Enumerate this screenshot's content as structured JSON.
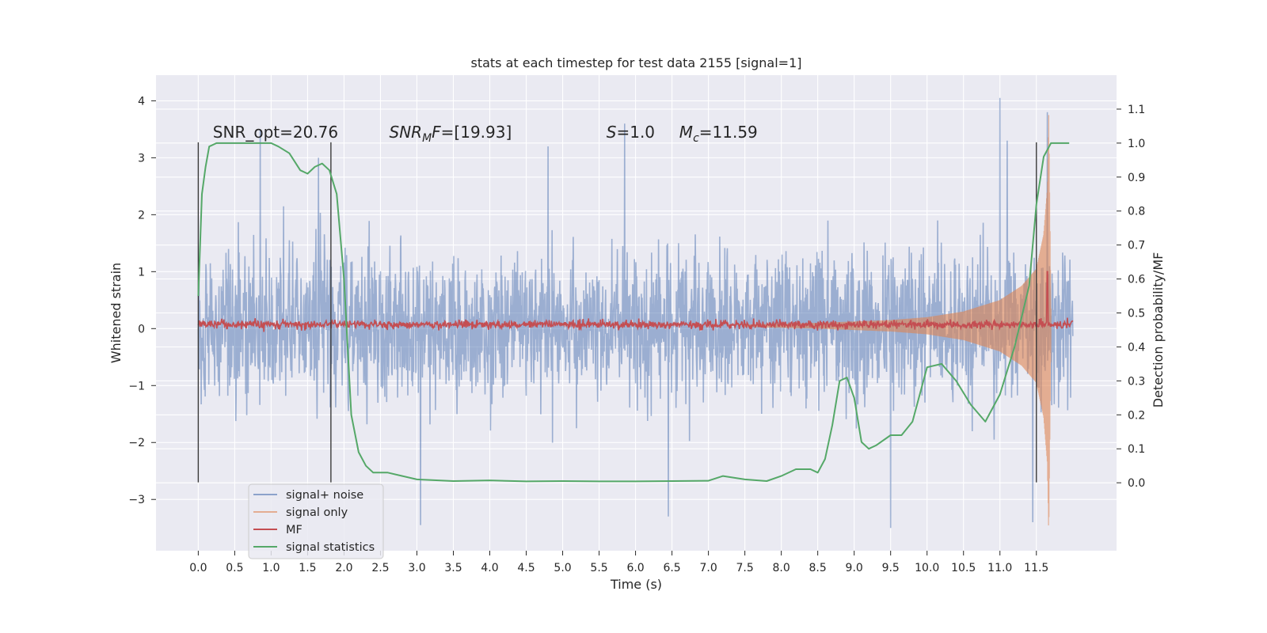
{
  "chart_data": {
    "type": "line",
    "title": "stats at each timestep for test data 2155 [signal=1]",
    "xlabel": "Time (s)",
    "ylabel": "Whitened strain",
    "ylabel_right": "Detection probability/MF",
    "xlim": [
      -0.58,
      12.6
    ],
    "ylim": [
      -3.9,
      4.45
    ],
    "ylim_right": [
      -0.2,
      1.2
    ],
    "x_ticks": [
      "0.0",
      "0.5",
      "1.0",
      "1.5",
      "2.0",
      "2.5",
      "3.0",
      "3.5",
      "4.0",
      "4.5",
      "5.0",
      "5.5",
      "6.0",
      "6.5",
      "7.0",
      "7.5",
      "8.0",
      "8.5",
      "9.0",
      "9.5",
      "10.0",
      "10.5",
      "11.0",
      "11.5"
    ],
    "y_ticks": [
      "−3",
      "−2",
      "−1",
      "0",
      "1",
      "2",
      "3",
      "4"
    ],
    "y_ticks_right": [
      "0.0",
      "0.1",
      "0.2",
      "0.3",
      "0.4",
      "0.5",
      "0.6",
      "0.7",
      "0.8",
      "0.9",
      "1.0",
      "1.1"
    ],
    "grid": true,
    "legend_position": "lower-left",
    "annotations": [
      {
        "id": "snr-opt",
        "text": "SNR_opt=20.76",
        "x": 0.2,
        "y": 3.35
      },
      {
        "id": "snr-mf",
        "text": "SNR_MF=[19.93]",
        "x": 2.62,
        "y": 3.35
      },
      {
        "id": "s-value",
        "text": "S=1.0",
        "x": 5.6,
        "y": 3.35
      },
      {
        "id": "mc-value",
        "text": "M_c=11.59",
        "x": 6.6,
        "y": 3.35
      }
    ],
    "vertical_markers": [
      {
        "x": 0.0,
        "y_range": [
          -2.7,
          3.27
        ]
      },
      {
        "x": 1.82,
        "y_range": [
          -2.7,
          3.27
        ]
      },
      {
        "x": 11.5,
        "y_range": [
          -2.7,
          3.27
        ]
      }
    ],
    "colors": {
      "signal_noise": "#4C72B0",
      "signal_only": "#DD8452",
      "mf": "#C44E52",
      "statistics": "#55A868",
      "background": "#EAEAF2",
      "marker": "#3a3a3a"
    },
    "series": [
      {
        "name": "signal+ noise",
        "axis": "left",
        "kind": "dense_noise",
        "x_range": [
          0.0,
          12.0
        ],
        "typical_band": [
          -1.35,
          1.45
        ],
        "peaks": [
          [
            0.85,
            3.5
          ],
          [
            1.65,
            3.0
          ],
          [
            4.8,
            3.2
          ],
          [
            5.85,
            3.6
          ],
          [
            11.0,
            4.05
          ],
          [
            11.1,
            3.3
          ],
          [
            11.65,
            3.8
          ]
        ],
        "troughs": [
          [
            3.05,
            -3.45
          ],
          [
            6.45,
            -3.3
          ],
          [
            9.5,
            -3.5
          ],
          [
            11.45,
            -3.4
          ]
        ]
      },
      {
        "name": "signal only",
        "axis": "left",
        "kind": "chirp_envelope",
        "x": [
          7.5,
          8.5,
          9.5,
          10.0,
          10.5,
          11.0,
          11.3,
          11.5,
          11.6,
          11.65,
          11.67,
          11.7
        ],
        "amplitude": [
          0.02,
          0.05,
          0.1,
          0.15,
          0.25,
          0.45,
          0.7,
          1.0,
          1.6,
          2.4,
          3.7,
          0.3
        ]
      },
      {
        "name": "MF",
        "axis": "left",
        "kind": "noisy_baseline",
        "x_range": [
          0.0,
          12.0
        ],
        "baseline": 0.07,
        "jitter": 0.06,
        "spike": [
          11.65,
          1.0
        ]
      },
      {
        "name": "signal statistics",
        "axis": "right",
        "kind": "line",
        "x": [
          0.0,
          0.05,
          0.1,
          0.15,
          0.25,
          0.5,
          0.8,
          1.0,
          1.1,
          1.25,
          1.4,
          1.5,
          1.6,
          1.7,
          1.8,
          1.9,
          2.0,
          2.05,
          2.1,
          2.2,
          2.3,
          2.4,
          2.6,
          2.8,
          3.0,
          3.5,
          4.0,
          4.5,
          5.0,
          5.5,
          6.0,
          6.5,
          7.0,
          7.2,
          7.5,
          7.8,
          8.0,
          8.2,
          8.4,
          8.5,
          8.6,
          8.7,
          8.8,
          8.9,
          9.0,
          9.1,
          9.2,
          9.3,
          9.5,
          9.65,
          9.8,
          10.0,
          10.2,
          10.4,
          10.6,
          10.8,
          11.0,
          11.2,
          11.4,
          11.5,
          11.6,
          11.7,
          11.8,
          11.95
        ],
        "y": [
          0.55,
          0.85,
          0.93,
          0.99,
          1.0,
          1.0,
          1.0,
          1.0,
          0.99,
          0.97,
          0.92,
          0.91,
          0.93,
          0.94,
          0.92,
          0.85,
          0.6,
          0.4,
          0.2,
          0.09,
          0.05,
          0.03,
          0.03,
          0.02,
          0.01,
          0.005,
          0.007,
          0.004,
          0.005,
          0.004,
          0.004,
          0.005,
          0.006,
          0.02,
          0.01,
          0.005,
          0.02,
          0.04,
          0.04,
          0.03,
          0.07,
          0.17,
          0.3,
          0.31,
          0.25,
          0.12,
          0.1,
          0.11,
          0.14,
          0.14,
          0.18,
          0.34,
          0.35,
          0.3,
          0.23,
          0.18,
          0.26,
          0.4,
          0.58,
          0.82,
          0.96,
          1.0,
          1.0,
          1.0
        ]
      }
    ]
  }
}
